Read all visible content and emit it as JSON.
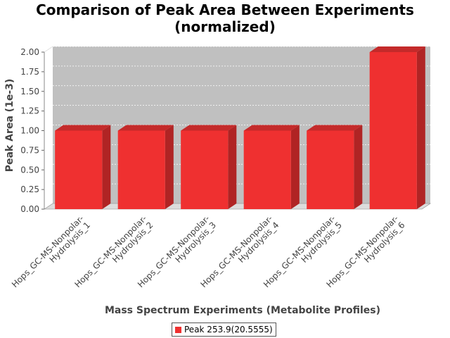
{
  "chart_data": {
    "type": "bar",
    "title_lines": [
      "Comparison of Peak Area Between Experiments",
      "(normalized)"
    ],
    "xlabel": "Mass Spectrum Experiments (Metabolite Profiles)",
    "ylabel": "Peak Area (1e-3)",
    "categories": [
      "Hops_GC-MS-Nonpolar-Hydrolysis_1",
      "Hops_GC-MS-Nonpolar-Hydrolysis_2",
      "Hops_GC-MS-Nonpolar-Hydrolysis_3",
      "Hops_GC-MS-Nonpolar-Hydrolysis_4",
      "Hops_GC-MS-Nonpolar-Hydrolysis_5",
      "Hops_GC-MS-Nonpolar-Hydrolysis_6"
    ],
    "category_label_lines": [
      [
        "Hops_GC-MS-Nonpolar-",
        "Hydrolysis_1"
      ],
      [
        "Hops_GC-MS-Nonpolar-",
        "Hydrolysis_2"
      ],
      [
        "Hops_GC-MS-Nonpolar-",
        "Hydrolysis_3"
      ],
      [
        "Hops_GC-MS-Nonpolar-",
        "Hydrolysis_4"
      ],
      [
        "Hops_GC-MS-Nonpolar-",
        "Hydrolysis_5"
      ],
      [
        "Hops_GC-MS-Nonpolar-",
        "Hydrolysis_6"
      ]
    ],
    "series": [
      {
        "name": "Peak 253.9(20.5555)",
        "values": [
          1.0,
          1.0,
          1.0,
          1.0,
          1.0,
          2.0
        ],
        "color": "#ef3030"
      }
    ],
    "ylim": [
      0,
      2.0
    ],
    "yticks": [
      "0.00",
      "0.25",
      "0.50",
      "0.75",
      "1.00",
      "1.25",
      "1.50",
      "1.75",
      "2.00"
    ],
    "grid": true,
    "style": "3d-bar",
    "plot_background": "#c0c0c0",
    "legend_position": "bottom-center"
  }
}
